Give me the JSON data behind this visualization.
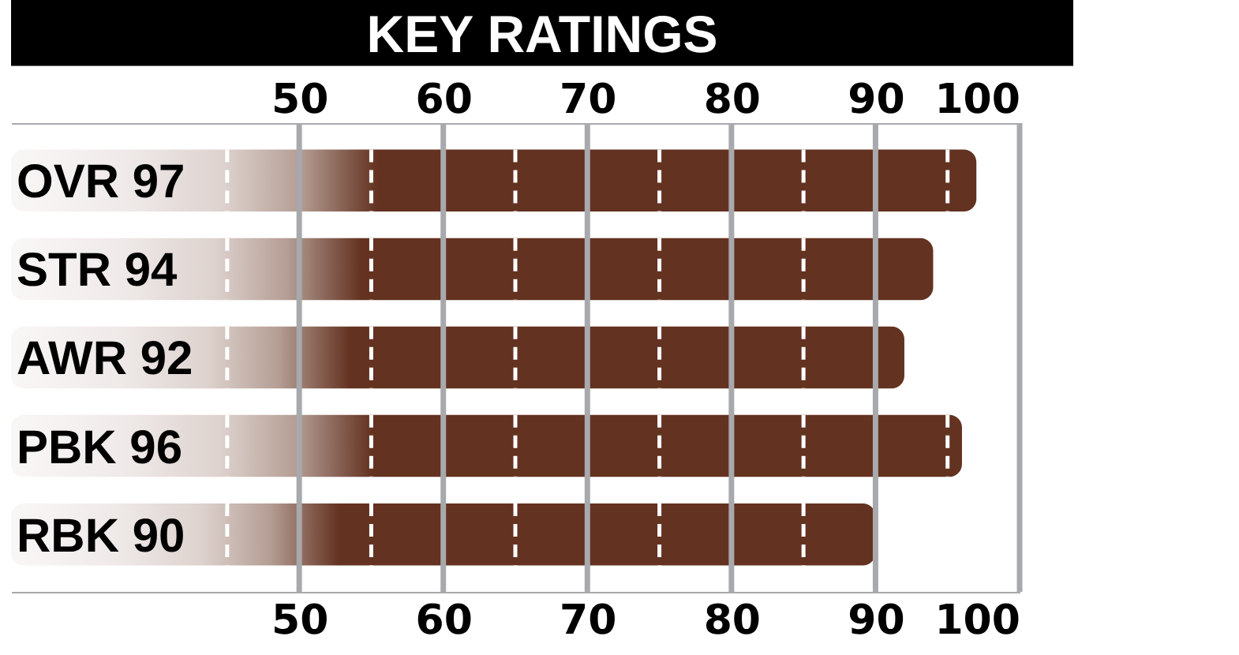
{
  "chart_data": {
    "type": "bar",
    "orientation": "horizontal",
    "title": "KEY RATINGS",
    "categories": [
      "OVR 97",
      "STR 94",
      "AWR 92",
      "PBK 96",
      "RBK 90"
    ],
    "values": [
      97,
      94,
      92,
      96,
      90
    ],
    "color": "#633220",
    "xlim": [
      30,
      100
    ],
    "xticks": [
      50,
      60,
      70,
      80,
      90,
      100
    ],
    "x2lim": [
      30,
      100
    ],
    "x2ticks": [
      50,
      60,
      70,
      80,
      90,
      100
    ],
    "grid": "x",
    "ref_lines": [
      {
        "axis": "x",
        "value": 45,
        "color": "#ffffff",
        "line_style": "dashed"
      },
      {
        "axis": "x",
        "value": 55,
        "color": "#ffffff",
        "line_style": "dashed"
      },
      {
        "axis": "x",
        "value": 65,
        "color": "#ffffff",
        "line_style": "dashed"
      },
      {
        "axis": "x",
        "value": 75,
        "color": "#ffffff",
        "line_style": "dashed"
      },
      {
        "axis": "x",
        "value": 85,
        "color": "#ffffff",
        "line_style": "dashed"
      },
      {
        "axis": "x",
        "value": 95,
        "color": "#ffffff",
        "line_style": "dashed"
      }
    ]
  }
}
